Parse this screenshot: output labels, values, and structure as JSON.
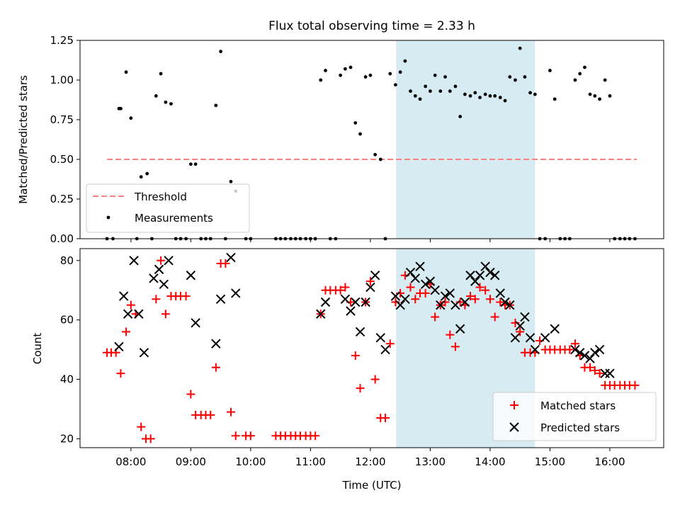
{
  "title": "Flux total observing time = 2.33 h",
  "chart_data": [
    {
      "type": "scatter",
      "ylabel": "Matched/Predicted stars",
      "xlim": [
        7.15,
        16.9
      ],
      "ylim": [
        0,
        1.25
      ],
      "yticks": [
        0.0,
        0.25,
        0.5,
        0.75,
        1.0,
        1.25
      ],
      "ytick_labels": [
        "0.00",
        "0.25",
        "0.50",
        "0.75",
        "1.00",
        "1.25"
      ],
      "shaded_span": [
        12.43,
        14.75
      ],
      "shaded_color": "#add8e6",
      "threshold": {
        "name": "Threshold",
        "y": 0.5,
        "x": [
          7.6,
          16.45
        ],
        "color": "#ff8080"
      },
      "legend": {
        "position": "lower-left",
        "entries": [
          "Threshold",
          "Measurements"
        ]
      },
      "series": [
        {
          "name": "Measurements",
          "color": "#000000",
          "marker": "dot",
          "x": [
            7.6,
            7.7,
            7.8,
            7.83,
            7.92,
            8.0,
            8.1,
            8.17,
            8.27,
            8.35,
            8.42,
            8.5,
            8.58,
            8.67,
            8.75,
            8.83,
            8.92,
            9.0,
            9.08,
            9.17,
            9.25,
            9.33,
            9.42,
            9.5,
            9.58,
            9.67,
            9.75,
            9.92,
            10.0,
            10.42,
            10.5,
            10.58,
            10.67,
            10.75,
            10.83,
            10.92,
            11.0,
            11.08,
            11.17,
            11.25,
            11.33,
            11.42,
            11.5,
            11.58,
            11.67,
            11.75,
            11.83,
            11.92,
            12.0,
            12.08,
            12.17,
            12.25,
            12.33,
            12.42,
            12.5,
            12.58,
            12.67,
            12.75,
            12.83,
            12.92,
            13.0,
            13.08,
            13.17,
            13.25,
            13.33,
            13.42,
            13.5,
            13.58,
            13.67,
            13.75,
            13.83,
            13.92,
            14.0,
            14.08,
            14.17,
            14.25,
            14.33,
            14.42,
            14.5,
            14.58,
            14.67,
            14.75,
            14.83,
            14.92,
            15.0,
            15.08,
            15.17,
            15.25,
            15.33,
            15.42,
            15.5,
            15.58,
            15.67,
            15.75,
            15.83,
            15.92,
            16.0,
            16.08,
            16.17,
            16.25,
            16.33,
            16.42
          ],
          "y": [
            0,
            0,
            0.82,
            0.82,
            1.05,
            0.76,
            0,
            0.39,
            0.41,
            0,
            0.9,
            1.04,
            0.86,
            0.85,
            0,
            0,
            0,
            0.47,
            0.47,
            0,
            0,
            0,
            0.84,
            1.18,
            0,
            0.36,
            0.3,
            0,
            0,
            0,
            0,
            0,
            0,
            0,
            0,
            0,
            0,
            0,
            1.0,
            1.06,
            0,
            0,
            1.03,
            1.07,
            1.08,
            0.73,
            0.66,
            1.02,
            1.03,
            0.53,
            0.5,
            0,
            1.04,
            0.97,
            1.05,
            1.12,
            0.93,
            0.9,
            0.88,
            0.96,
            0.93,
            1.03,
            0.93,
            1.02,
            0.93,
            0.96,
            0.77,
            0.91,
            0.9,
            0.92,
            0.89,
            0.91,
            0.9,
            0.9,
            0.89,
            0.87,
            1.02,
            1.0,
            1.2,
            1.02,
            0.92,
            0.91,
            0,
            0,
            1.06,
            0.88,
            0,
            0,
            0,
            1.0,
            1.04,
            1.08,
            0.91,
            0.9,
            0.88,
            1.0,
            0.9,
            0,
            0,
            0,
            0,
            0
          ]
        }
      ]
    },
    {
      "type": "scatter",
      "xlabel": "Time (UTC)",
      "ylabel": "Count",
      "xlim": [
        7.15,
        16.9
      ],
      "ylim": [
        17,
        84
      ],
      "yticks": [
        20,
        40,
        60,
        80
      ],
      "xticks": [
        8,
        9,
        10,
        11,
        12,
        13,
        14,
        15,
        16
      ],
      "xtick_labels": [
        "08:00",
        "09:00",
        "10:00",
        "11:00",
        "12:00",
        "13:00",
        "14:00",
        "15:00",
        "16:00"
      ],
      "shaded_span": [
        12.43,
        14.75
      ],
      "shaded_color": "#add8e6",
      "legend": {
        "position": "lower-right",
        "entries": [
          "Matched stars",
          "Predicted stars"
        ]
      },
      "series": [
        {
          "name": "Matched stars",
          "color": "#ff0000",
          "marker": "plus",
          "x": [
            7.6,
            7.67,
            7.75,
            7.83,
            7.92,
            8.0,
            8.08,
            8.17,
            8.25,
            8.33,
            8.42,
            8.5,
            8.58,
            8.67,
            8.75,
            8.83,
            8.92,
            9.0,
            9.08,
            9.17,
            9.25,
            9.33,
            9.42,
            9.5,
            9.58,
            9.67,
            9.75,
            9.92,
            10.0,
            10.42,
            10.5,
            10.58,
            10.67,
            10.75,
            10.83,
            10.92,
            11.0,
            11.08,
            11.17,
            11.25,
            11.33,
            11.42,
            11.5,
            11.58,
            11.67,
            11.75,
            11.83,
            11.92,
            12.0,
            12.08,
            12.17,
            12.25,
            12.33,
            12.42,
            12.5,
            12.58,
            12.67,
            12.75,
            12.83,
            12.92,
            13.0,
            13.08,
            13.17,
            13.25,
            13.33,
            13.42,
            13.5,
            13.58,
            13.67,
            13.75,
            13.83,
            13.92,
            14.0,
            14.08,
            14.17,
            14.25,
            14.33,
            14.42,
            14.5,
            14.58,
            14.67,
            14.75,
            14.83,
            14.92,
            15.0,
            15.08,
            15.17,
            15.25,
            15.33,
            15.42,
            15.5,
            15.58,
            15.67,
            15.75,
            15.83,
            15.92,
            16.0,
            16.08,
            16.17,
            16.25,
            16.33,
            16.42
          ],
          "y": [
            49,
            49,
            49,
            42,
            56,
            65,
            62,
            24,
            20,
            20,
            67,
            80,
            62,
            68,
            68,
            68,
            68,
            35,
            28,
            28,
            28,
            28,
            44,
            79,
            79,
            29,
            21,
            21,
            21,
            21,
            21,
            21,
            21,
            21,
            21,
            21,
            21,
            21,
            62,
            70,
            70,
            70,
            70,
            71,
            66,
            48,
            37,
            66,
            73,
            40,
            27,
            27,
            52,
            66,
            69,
            75,
            71,
            67,
            69,
            69,
            72,
            61,
            65,
            66,
            55,
            51,
            66,
            65,
            68,
            67,
            71,
            70,
            67,
            61,
            66,
            65,
            65,
            59,
            56,
            49,
            49,
            49,
            53,
            50,
            50,
            50,
            50,
            50,
            50,
            52,
            48,
            44,
            44,
            43,
            42,
            38,
            38,
            38,
            38,
            38,
            38,
            38
          ]
        },
        {
          "name": "Predicted stars",
          "color": "#000000",
          "marker": "x",
          "x": [
            7.8,
            7.88,
            7.95,
            8.05,
            8.13,
            8.22,
            8.38,
            8.47,
            8.55,
            8.63,
            9.0,
            9.08,
            9.42,
            9.5,
            9.67,
            9.75,
            11.17,
            11.25,
            11.58,
            11.67,
            11.75,
            11.83,
            11.92,
            12.0,
            12.08,
            12.17,
            12.25,
            12.42,
            12.5,
            12.58,
            12.67,
            12.75,
            12.83,
            12.92,
            13.0,
            13.08,
            13.17,
            13.25,
            13.33,
            13.42,
            13.5,
            13.58,
            13.67,
            13.75,
            13.83,
            13.92,
            14.0,
            14.08,
            14.17,
            14.25,
            14.33,
            14.42,
            14.5,
            14.58,
            14.67,
            14.75,
            14.92,
            15.08,
            15.42,
            15.5,
            15.58,
            15.67,
            15.75,
            15.83,
            15.92,
            16.0
          ],
          "y": [
            51,
            68,
            62,
            80,
            62,
            49,
            74,
            77,
            72,
            80,
            75,
            59,
            52,
            67,
            81,
            69,
            62,
            66,
            67,
            63,
            66,
            56,
            66,
            71,
            75,
            54,
            50,
            68,
            65,
            67,
            76,
            74,
            78,
            72,
            73,
            70,
            65,
            68,
            69,
            65,
            57,
            66,
            75,
            73,
            75,
            78,
            76,
            75,
            69,
            66,
            65,
            54,
            58,
            61,
            54,
            50,
            54,
            57,
            50,
            49,
            48,
            47,
            49,
            50,
            42,
            42
          ]
        }
      ]
    }
  ]
}
